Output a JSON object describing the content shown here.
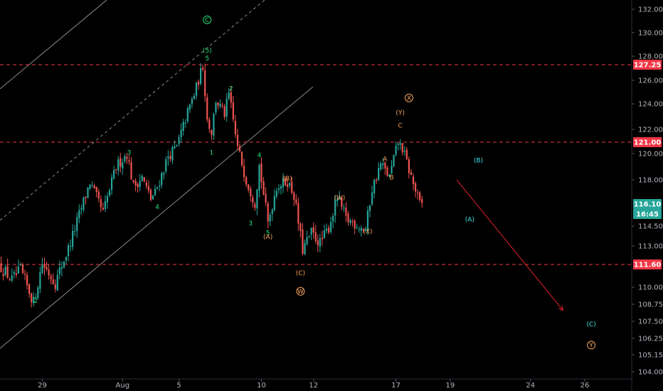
{
  "chart_data": {
    "type": "candlestick",
    "price_axis": {
      "ticks": [
        "132.00",
        "130.00",
        "128.00",
        "126.00",
        "124.00",
        "122.00",
        "120.00",
        "118.00",
        "114.50",
        "113.00",
        "110.00",
        "108.75",
        "107.50",
        "106.25",
        "105.15",
        "104.00"
      ],
      "range": [
        103.5,
        133.0
      ]
    },
    "time_axis": {
      "ticks": [
        "29",
        "Aug",
        "5",
        "10",
        "12",
        "17",
        "19",
        "24",
        "26"
      ]
    },
    "horizontal_levels": [
      {
        "label": "127.25",
        "value": 127.25,
        "color": "#f23645"
      },
      {
        "label": "121.00",
        "value": 121.0,
        "color": "#f23645"
      },
      {
        "label": "111.60",
        "value": 111.6,
        "color": "#f23645"
      }
    ],
    "current_price": {
      "label": "116.10",
      "value": 116.1,
      "color": "#26a69a"
    },
    "countdown": {
      "label": "16:45"
    },
    "colors": {
      "up": "#26a69a",
      "down": "#ef5350",
      "wave_green": "#26e07a",
      "wave_orange": "#f7a35c",
      "wave_cyan": "#3ee6e6",
      "projection": "#e0202e"
    },
    "wave_labels": [
      {
        "text": "C",
        "circled": true,
        "color": "green",
        "t": 95,
        "p": 131.1
      },
      {
        "text": "(5)",
        "color": "green",
        "t": 95,
        "p": 128.5
      },
      {
        "text": "5",
        "color": "green",
        "t": 95,
        "p": 127.8
      },
      {
        "text": "2",
        "color": "green",
        "t": 106,
        "p": 125.3
      },
      {
        "text": "1",
        "color": "green",
        "t": 97,
        "p": 120.1
      },
      {
        "text": "3",
        "color": "green",
        "t": 59,
        "p": 120.1
      },
      {
        "text": "4",
        "color": "green",
        "t": 72,
        "p": 115.9
      },
      {
        "text": "2",
        "color": "green",
        "t": 16,
        "p": 109.0
      },
      {
        "text": "4",
        "color": "green",
        "t": 119,
        "p": 119.9
      },
      {
        "text": "3",
        "color": "green",
        "t": 115,
        "p": 114.7
      },
      {
        "text": "5",
        "color": "green",
        "t": 123,
        "p": 114.0
      },
      {
        "text": "(B)",
        "color": "orange",
        "t": 132,
        "p": 118.1
      },
      {
        "text": "(A)",
        "color": "orange",
        "t": 123,
        "p": 113.7
      },
      {
        "text": "(C)",
        "color": "orange",
        "t": 138,
        "p": 111.0
      },
      {
        "text": "W",
        "circled": true,
        "color": "orange",
        "t": 138,
        "p": 109.7
      },
      {
        "text": "(W)",
        "color": "orange",
        "t": 156,
        "p": 116.6
      },
      {
        "text": "(X)",
        "color": "orange",
        "t": 169,
        "p": 114.1
      },
      {
        "text": "A",
        "color": "orange",
        "t": 177,
        "p": 119.6
      },
      {
        "text": "B",
        "color": "orange",
        "t": 180,
        "p": 118.2
      },
      {
        "text": "C",
        "color": "orange",
        "t": 184,
        "p": 122.3
      },
      {
        "text": "(Y)",
        "color": "orange",
        "t": 184,
        "p": 123.3
      },
      {
        "text": "X",
        "circled": true,
        "color": "orange",
        "t": 188,
        "p": 124.5
      },
      {
        "text": "(B)",
        "color": "cyan",
        "t": 220,
        "p": 119.5
      },
      {
        "text": "(A)",
        "color": "cyan",
        "t": 216,
        "p": 115.0
      },
      {
        "text": "(C)",
        "color": "cyan",
        "t": 272,
        "p": 107.3
      },
      {
        "text": "Y",
        "circled": true,
        "color": "orange",
        "t": 272,
        "p": 105.8
      }
    ]
  }
}
